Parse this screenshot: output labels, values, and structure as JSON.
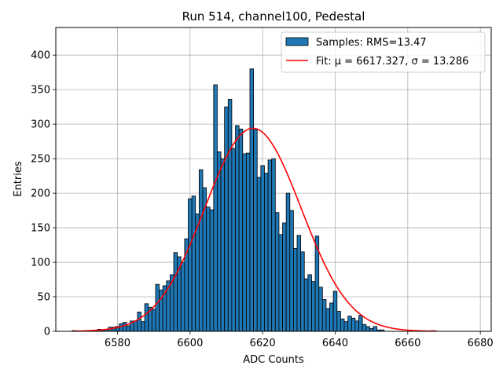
{
  "chart_data": {
    "type": "bar",
    "title": "Run 514, channel100, Pedestal",
    "xlabel": "ADC Counts",
    "ylabel": "Entries",
    "xlim": [
      6563,
      6683
    ],
    "ylim": [
      0,
      440
    ],
    "xticks": [
      6580,
      6600,
      6620,
      6640,
      6660,
      6680
    ],
    "yticks": [
      0,
      50,
      100,
      150,
      200,
      250,
      300,
      350,
      400
    ],
    "grid": true,
    "legend_position": "top-right",
    "histogram": {
      "name": "Samples: RMS=13.47",
      "color": "#1f77b4",
      "edgecolor": "#000000",
      "bin_width": 1,
      "x": [
        6568,
        6569,
        6570,
        6571,
        6572,
        6573,
        6574,
        6575,
        6576,
        6577,
        6578,
        6579,
        6580,
        6581,
        6582,
        6583,
        6584,
        6585,
        6586,
        6587,
        6588,
        6589,
        6590,
        6591,
        6592,
        6593,
        6594,
        6595,
        6596,
        6597,
        6598,
        6599,
        6600,
        6601,
        6602,
        6603,
        6604,
        6605,
        6606,
        6607,
        6608,
        6609,
        6610,
        6611,
        6612,
        6613,
        6614,
        6615,
        6616,
        6617,
        6618,
        6619,
        6620,
        6621,
        6622,
        6623,
        6624,
        6625,
        6626,
        6627,
        6628,
        6629,
        6630,
        6631,
        6632,
        6633,
        6634,
        6635,
        6636,
        6637,
        6638,
        6639,
        6640,
        6641,
        6642,
        6643,
        6644,
        6645,
        6646,
        6647,
        6648,
        6649,
        6650,
        6651,
        6652,
        6653,
        6654,
        6655,
        6656,
        6657,
        6658,
        6659,
        6660,
        6661,
        6662,
        6663,
        6664,
        6665,
        6666,
        6667
      ],
      "counts": [
        1,
        0,
        0,
        0,
        0,
        0,
        0,
        3,
        2,
        3,
        6,
        6,
        7,
        11,
        13,
        8,
        15,
        15,
        28,
        14,
        40,
        35,
        32,
        68,
        60,
        66,
        73,
        82,
        114,
        108,
        100,
        134,
        192,
        196,
        170,
        234,
        208,
        180,
        176,
        357,
        260,
        250,
        325,
        336,
        265,
        298,
        293,
        257,
        258,
        380,
        292,
        223,
        240,
        229,
        248,
        250,
        172,
        140,
        157,
        200,
        175,
        120,
        139,
        115,
        76,
        82,
        72,
        138,
        64,
        46,
        33,
        41,
        58,
        29,
        18,
        14,
        22,
        19,
        15,
        23,
        10,
        7,
        4,
        7,
        2,
        2,
        0,
        0,
        0,
        0,
        0,
        0,
        0,
        0,
        0,
        0,
        0,
        0,
        0,
        1
      ]
    },
    "fit": {
      "name": "Fit: μ = 6617.327, σ = 13.286",
      "color": "#ff0000",
      "mu": 6617.327,
      "sigma": 13.286,
      "peak": 294,
      "x_range": [
        6568,
        6668
      ]
    }
  }
}
